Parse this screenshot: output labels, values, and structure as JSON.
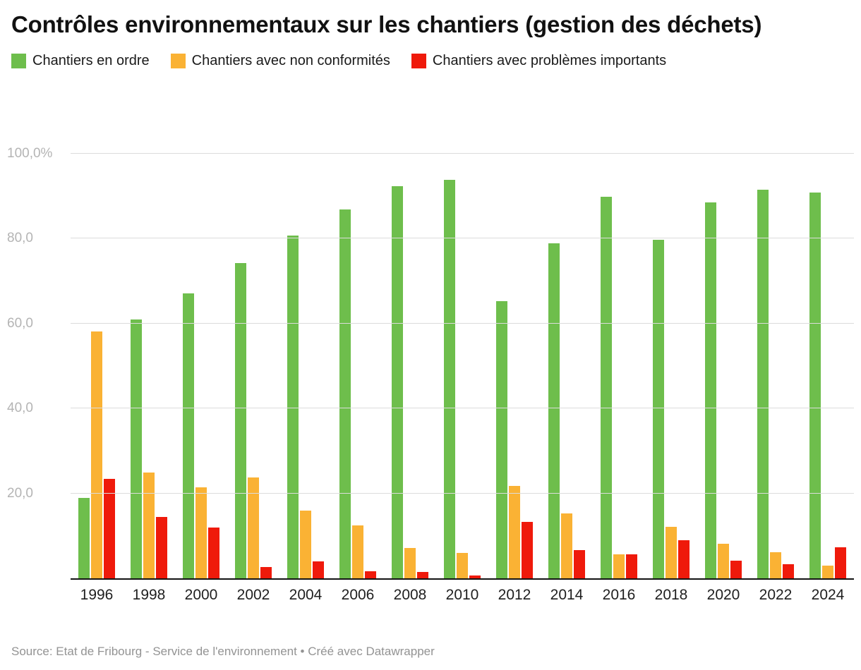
{
  "title": "Contrôles environnementaux sur les chantiers (gestion des déchets)",
  "footer": {
    "source_line": "Source: Etat de Fribourg - Service de l'environnement • Créé avec Datawrapper"
  },
  "chart_data": {
    "type": "bar",
    "title": "Contrôles environnementaux sur les chantiers (gestion des déchets)",
    "categories": [
      "1996",
      "1998",
      "2000",
      "2002",
      "2004",
      "2006",
      "2008",
      "2010",
      "2012",
      "2014",
      "2016",
      "2018",
      "2020",
      "2022",
      "2024"
    ],
    "series": [
      {
        "name": "Chantiers en ordre",
        "color": "#6ebe4c",
        "values": [
          18.9,
          61.0,
          67.1,
          74.2,
          80.7,
          86.8,
          92.3,
          93.8,
          65.3,
          78.9,
          89.8,
          79.8,
          88.6,
          91.5,
          90.9
        ]
      },
      {
        "name": "Chantiers avec non conformités",
        "color": "#fab234",
        "values": [
          58.2,
          25.0,
          21.4,
          23.7,
          15.9,
          12.4,
          7.2,
          6.0,
          21.8,
          15.3,
          5.6,
          12.2,
          8.2,
          6.1,
          3.0
        ]
      },
      {
        "name": "Chantiers avec problèmes importants",
        "color": "#ef1a0b",
        "values": [
          23.4,
          14.4,
          11.9,
          2.6,
          4.0,
          1.7,
          1.5,
          0.7,
          13.3,
          6.7,
          5.6,
          8.9,
          4.1,
          3.3,
          7.3
        ]
      }
    ],
    "xlabel": "",
    "ylabel": "",
    "ylim": [
      0,
      100
    ],
    "yticks": [
      {
        "value": 20,
        "label": "20,0"
      },
      {
        "value": 40,
        "label": "40,0"
      },
      {
        "value": 60,
        "label": "60,0"
      },
      {
        "value": 80,
        "label": "80,0"
      },
      {
        "value": 100,
        "label": "100,0%"
      }
    ],
    "grid": "horizontal",
    "legend_position": "top"
  }
}
